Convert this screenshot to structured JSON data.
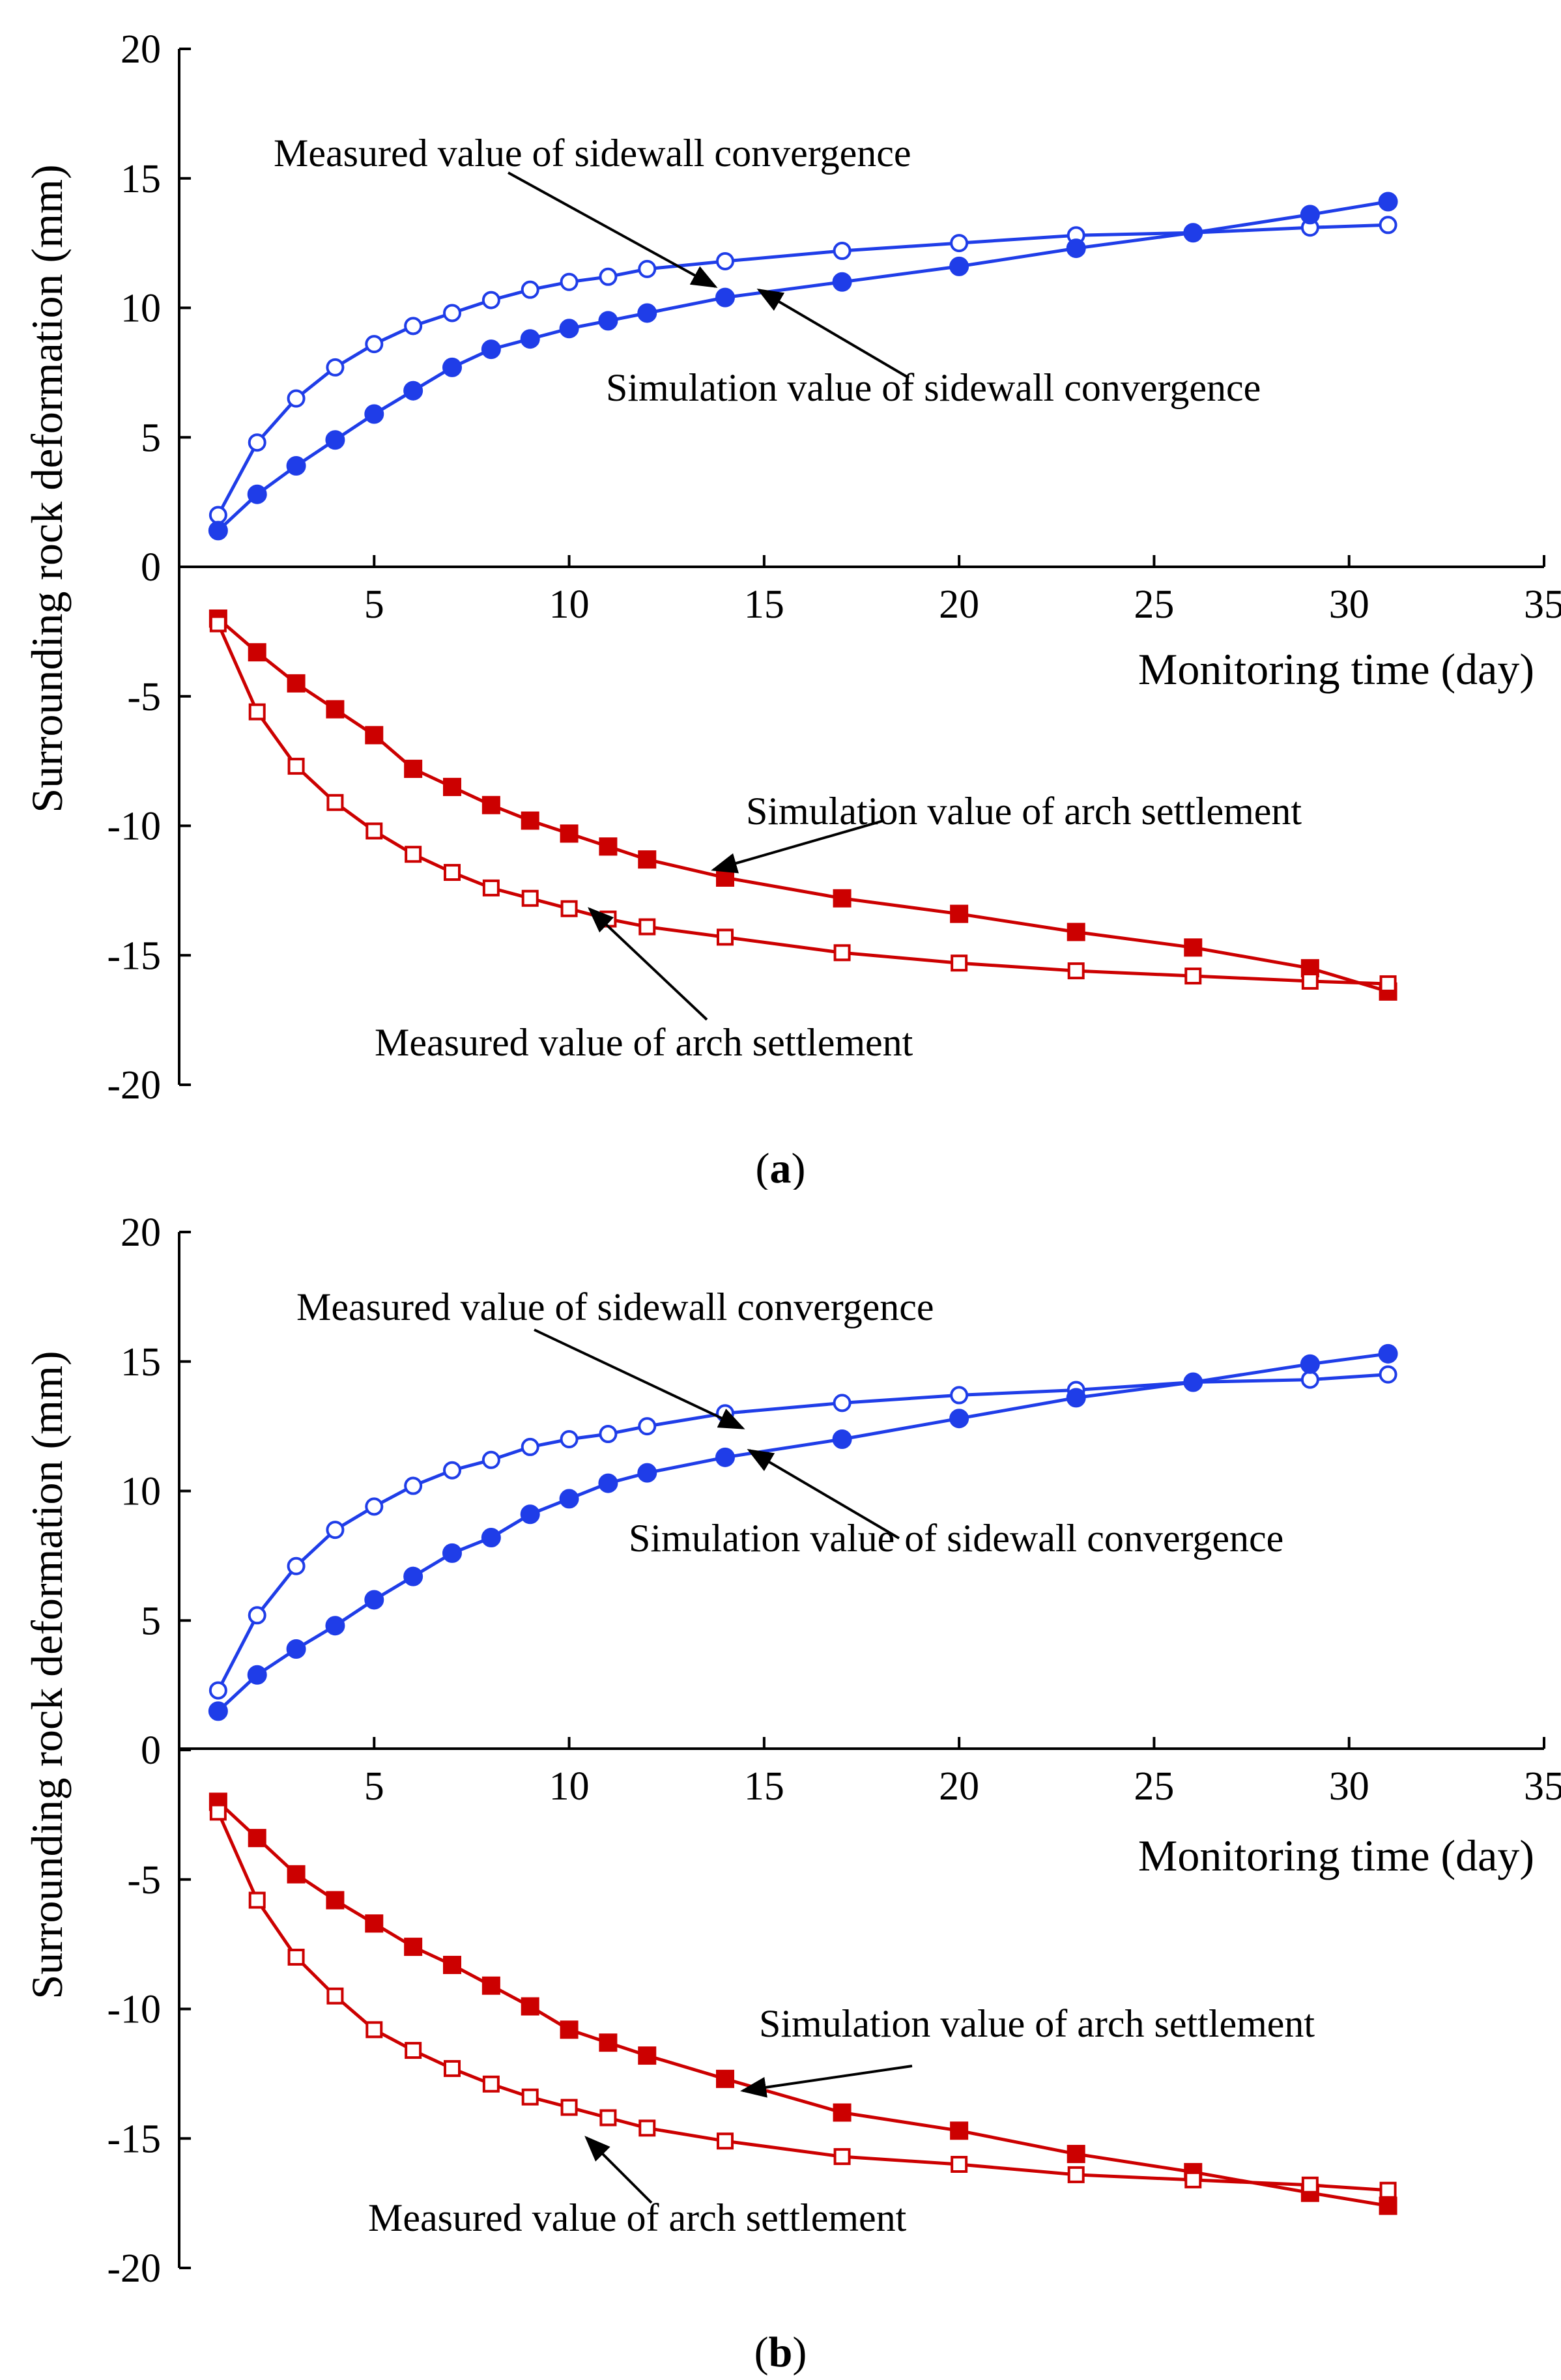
{
  "colors": {
    "sidewall": "#1f3de8",
    "arch": "#cc0000",
    "axis": "#000000"
  },
  "chart_data": [
    {
      "type": "line",
      "panel_label_open": "(",
      "panel_label_letter": "a",
      "panel_label_close": ")",
      "xlabel": "Monitoring time (day)",
      "ylabel": "Surrounding rock deformation (mm)",
      "xlim": [
        0,
        35
      ],
      "ylim": [
        -20,
        20
      ],
      "x_ticks": [
        "5",
        "10",
        "15",
        "20",
        "25",
        "30",
        "35"
      ],
      "y_ticks": [
        "20",
        "15",
        "10",
        "5",
        "0",
        "-5",
        "-10",
        "-15",
        "-20"
      ],
      "grid": false,
      "x": [
        1,
        2,
        3,
        4,
        5,
        6,
        7,
        8,
        9,
        10,
        11,
        12,
        14,
        17,
        20,
        23,
        26,
        29,
        31
      ],
      "series": [
        {
          "key": "sidewall_measured",
          "marker": "circle-open",
          "values": [
            2.0,
            4.8,
            6.5,
            7.7,
            8.6,
            9.3,
            9.8,
            10.3,
            10.7,
            11.0,
            11.2,
            11.5,
            11.8,
            12.2,
            12.5,
            12.8,
            12.9,
            13.1,
            13.2
          ]
        },
        {
          "key": "sidewall_simulated",
          "marker": "circle-filled",
          "values": [
            1.4,
            2.8,
            3.9,
            4.9,
            5.9,
            6.8,
            7.7,
            8.4,
            8.8,
            9.2,
            9.5,
            9.8,
            10.4,
            11.0,
            11.6,
            12.3,
            12.9,
            13.6,
            14.1
          ]
        },
        {
          "key": "arch_simulated",
          "marker": "square-filled",
          "values": [
            -2.0,
            -3.3,
            -4.5,
            -5.5,
            -6.5,
            -7.8,
            -8.5,
            -9.2,
            -9.8,
            -10.3,
            -10.8,
            -11.3,
            -12.0,
            -12.8,
            -13.4,
            -14.1,
            -14.7,
            -15.5,
            -16.4
          ]
        },
        {
          "key": "arch_measured",
          "marker": "square-open",
          "values": [
            -2.2,
            -5.6,
            -7.7,
            -9.1,
            -10.2,
            -11.1,
            -11.8,
            -12.4,
            -12.8,
            -13.2,
            -13.6,
            -13.9,
            -14.3,
            -14.9,
            -15.3,
            -15.6,
            -15.8,
            -16.0,
            -16.1
          ]
        }
      ],
      "annotations": {
        "sidewall_measured": "Measured value of sidewall convergence",
        "sidewall_simulated": "Simulation value of sidewall convergence",
        "arch_simulated": "Simulation value of arch settlement",
        "arch_measured": "Measured value of arch settlement"
      }
    },
    {
      "type": "line",
      "panel_label_open": "(",
      "panel_label_letter": "b",
      "panel_label_close": ")",
      "xlabel": "Monitoring time (day)",
      "ylabel": "Surrounding rock deformation (mm)",
      "xlim": [
        0,
        35
      ],
      "ylim": [
        -20,
        20
      ],
      "x_ticks": [
        "5",
        "10",
        "15",
        "20",
        "25",
        "30",
        "35"
      ],
      "y_ticks": [
        "20",
        "15",
        "10",
        "5",
        "0",
        "-5",
        "-10",
        "-15",
        "-20"
      ],
      "grid": false,
      "x": [
        1,
        2,
        3,
        4,
        5,
        6,
        7,
        8,
        9,
        10,
        11,
        12,
        14,
        17,
        20,
        23,
        26,
        29,
        31
      ],
      "series": [
        {
          "key": "sidewall_measured",
          "marker": "circle-open",
          "values": [
            2.3,
            5.2,
            7.1,
            8.5,
            9.4,
            10.2,
            10.8,
            11.2,
            11.7,
            12.0,
            12.2,
            12.5,
            13.0,
            13.4,
            13.7,
            13.9,
            14.2,
            14.3,
            14.5
          ]
        },
        {
          "key": "sidewall_simulated",
          "marker": "circle-filled",
          "values": [
            1.5,
            2.9,
            3.9,
            4.8,
            5.8,
            6.7,
            7.6,
            8.2,
            9.1,
            9.7,
            10.3,
            10.7,
            11.3,
            12.0,
            12.8,
            13.6,
            14.2,
            14.9,
            15.3
          ]
        },
        {
          "key": "arch_simulated",
          "marker": "square-filled",
          "values": [
            -2.0,
            -3.4,
            -4.8,
            -5.8,
            -6.7,
            -7.6,
            -8.3,
            -9.1,
            -9.9,
            -10.8,
            -11.3,
            -11.8,
            -12.7,
            -14.0,
            -14.7,
            -15.6,
            -16.3,
            -17.1,
            -17.6
          ]
        },
        {
          "key": "arch_measured",
          "marker": "square-open",
          "values": [
            -2.4,
            -5.8,
            -8.0,
            -9.5,
            -10.8,
            -11.6,
            -12.3,
            -12.9,
            -13.4,
            -13.8,
            -14.2,
            -14.6,
            -15.1,
            -15.7,
            -16.0,
            -16.4,
            -16.6,
            -16.8,
            -17.0
          ]
        }
      ],
      "annotations": {
        "sidewall_measured": "Measured value of sidewall convergence",
        "sidewall_simulated": "Simulation value of sidewall convergence",
        "arch_simulated": "Simulation value of arch settlement",
        "arch_measured": "Measured value of arch settlement"
      }
    }
  ]
}
